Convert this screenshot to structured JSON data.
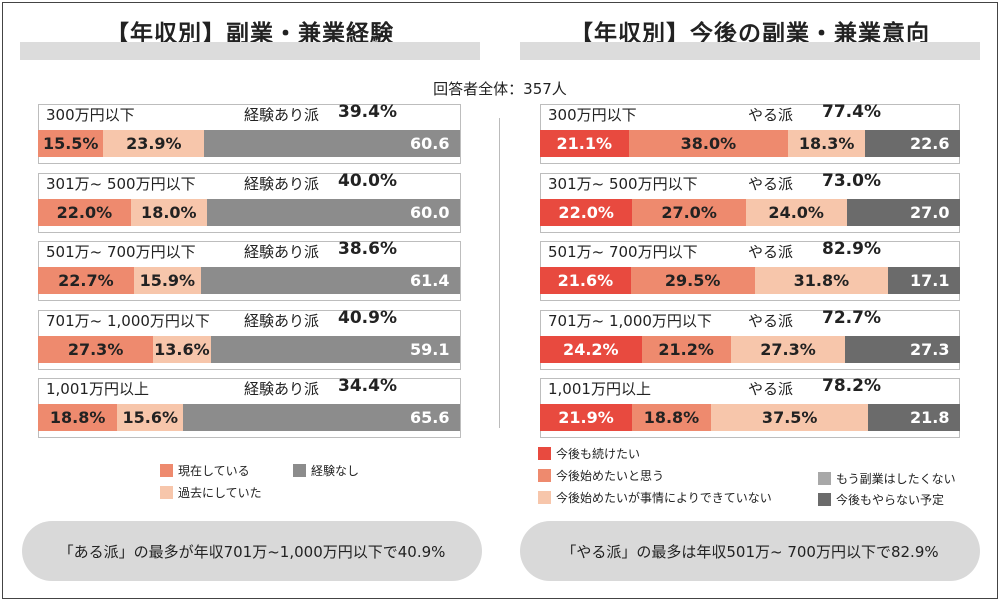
{
  "left": {
    "title": "【年収別】副業・兼業経験",
    "key_label": "経験あり派",
    "chart_data": {
      "type": "bar",
      "stacked": true,
      "orientation": "horizontal",
      "categories": [
        "300万円以下",
        "301万～500万円以下",
        "501万～700万円以下",
        "701万～1,000万円以下",
        "1,001万円以上"
      ],
      "category_display": [
        "300万円以下",
        "301万~ 500万円以下",
        "501万~ 700万円以下",
        "701万~ 1,000万円以下",
        "1,001万円以上"
      ],
      "series": [
        {
          "name": "現在している",
          "color": "#ee8a6e",
          "values": [
            15.5,
            22.0,
            22.7,
            27.3,
            18.8
          ],
          "labels": [
            "15.5%",
            "22.0%",
            "22.7%",
            "27.3%",
            "18.8%"
          ]
        },
        {
          "name": "過去にしていた",
          "color": "#f7c6ab",
          "values": [
            23.9,
            18.0,
            15.9,
            13.6,
            15.6
          ],
          "labels": [
            "23.9%",
            "18.0%",
            "15.9%",
            "13.6%",
            "15.6%"
          ]
        },
        {
          "name": "経験なし",
          "color": "#8c8c8c",
          "values": [
            60.6,
            60.0,
            61.4,
            59.1,
            65.6
          ],
          "labels": [
            "60.6",
            "60.0",
            "61.4",
            "59.1",
            "65.6"
          ]
        }
      ],
      "totals": [
        "39.4%",
        "40.0%",
        "38.6%",
        "40.9%",
        "34.4%"
      ],
      "xlim": [
        0,
        100
      ]
    },
    "summary": "「ある派」の最多が年収701万~1,000万円以下で40.9%"
  },
  "right": {
    "title": "【年収別】今後の副業・兼業意向",
    "key_label": "やる派",
    "chart_data": {
      "type": "bar",
      "stacked": true,
      "orientation": "horizontal",
      "categories": [
        "300万円以下",
        "301万～500万円以下",
        "501万～700万円以下",
        "701万～1,000万円以下",
        "1,001万円以上"
      ],
      "category_display": [
        "300万円以下",
        "301万~ 500万円以下",
        "501万~ 700万円以下",
        "701万~ 1,000万円以下",
        "1,001万円以上"
      ],
      "series": [
        {
          "name": "今後も続けたい",
          "color": "#e84a3f",
          "values": [
            21.1,
            22.0,
            21.6,
            24.2,
            21.9
          ],
          "labels": [
            "21.1%",
            "22.0%",
            "21.6%",
            "24.2%",
            "21.9%"
          ]
        },
        {
          "name": "今後始めたいと思う",
          "color": "#ee8a6e",
          "values": [
            38.0,
            27.0,
            29.5,
            21.2,
            18.8
          ],
          "labels": [
            "38.0%",
            "27.0%",
            "29.5%",
            "21.2%",
            "18.8%"
          ]
        },
        {
          "name": "今後始めたいが事情によりできていない",
          "color": "#f7c6ab",
          "values": [
            18.3,
            24.0,
            31.8,
            27.3,
            37.5
          ],
          "labels": [
            "18.3%",
            "24.0%",
            "31.8%",
            "27.3%",
            "37.5%"
          ]
        },
        {
          "name": "もう副業はしたくない",
          "color": "#a8a8a8",
          "values": [
            0,
            0,
            0,
            0,
            0
          ],
          "labels": [
            "",
            "",
            "",
            "",
            ""
          ]
        },
        {
          "name": "今後もやらない予定",
          "color": "#6b6b6b",
          "values": [
            22.6,
            27.0,
            17.1,
            27.3,
            21.8
          ],
          "labels": [
            "22.6",
            "27.0",
            "17.1",
            "27.3",
            "21.8"
          ]
        }
      ],
      "totals": [
        "77.4%",
        "73.0%",
        "82.9%",
        "72.7%",
        "78.2%"
      ],
      "xlim": [
        0,
        100
      ]
    },
    "summary": "「やる派」の最多は年収501万~ 700万円以下で82.9%"
  },
  "respondents": "回答者全体：357人"
}
